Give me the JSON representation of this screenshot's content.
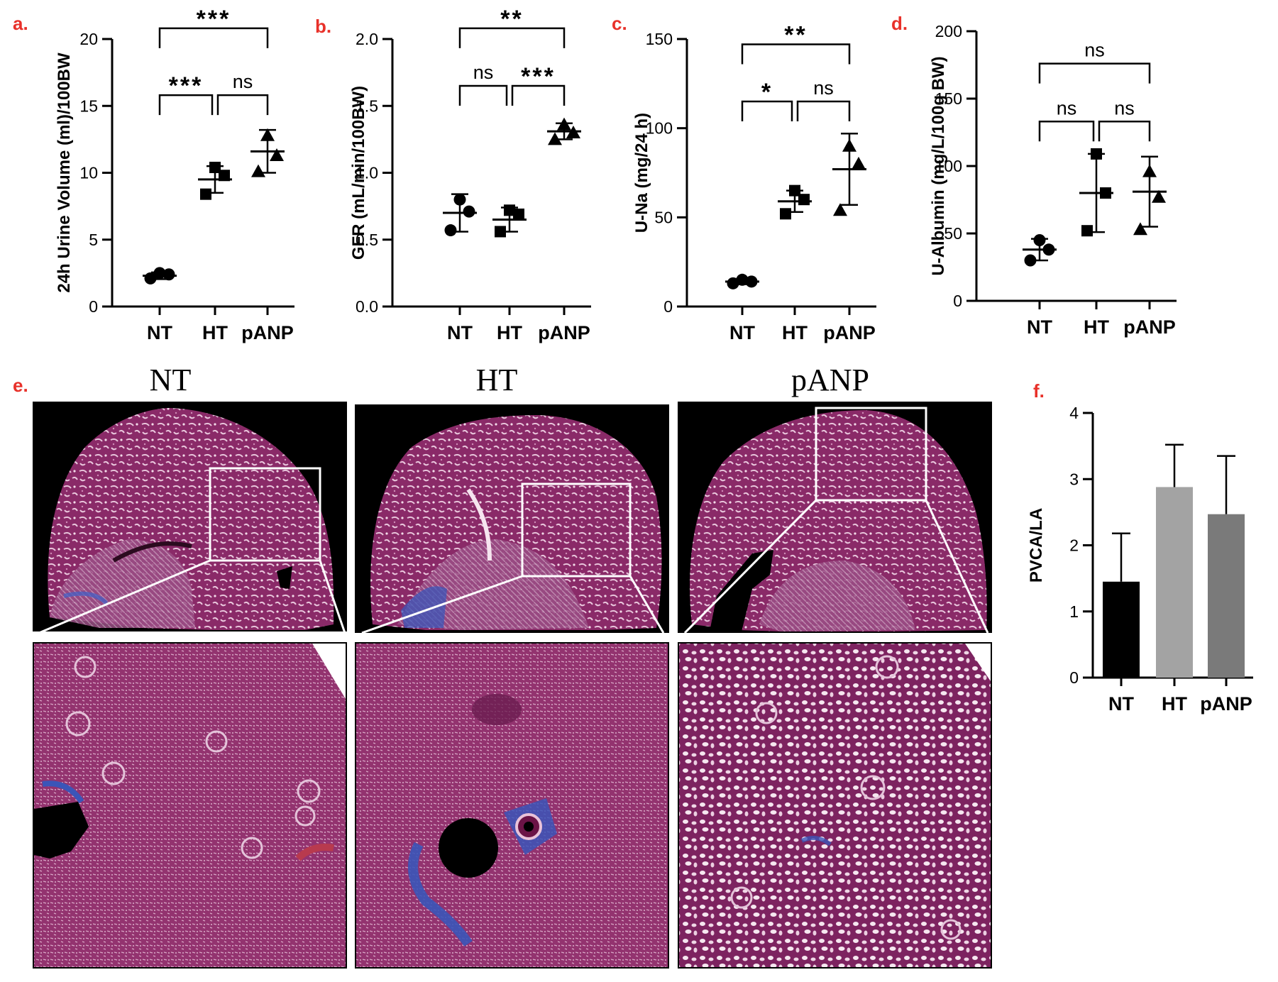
{
  "panel_labels": [
    "a.",
    "b.",
    "c.",
    "d.",
    "e.",
    "f."
  ],
  "colors": {
    "panel_label": "#e8312a",
    "bar_NT": "#000000",
    "bar_HT": "#a3a3a3",
    "bar_pANP": "#7a7a7a",
    "tissue": "#8a2a68",
    "tissue_light": "#c98ab0",
    "fibrosis": "#3b55b8"
  },
  "icons": {
    "NT": "circle-marker",
    "HT": "square-marker",
    "pANP": "triangle-marker"
  },
  "histology": {
    "titles": [
      "NT",
      "HT",
      "pANP"
    ]
  },
  "chart_data": [
    {
      "id": "a",
      "type": "scatter",
      "categories": [
        "NT",
        "HT",
        "pANP"
      ],
      "ylabel": "24h Urine Volume (ml)/100BW",
      "ylim": [
        0,
        20
      ],
      "yticks": [
        0,
        5,
        10,
        15,
        20
      ],
      "series": [
        {
          "category": "NT",
          "marker": "circle",
          "points": [
            2.1,
            2.4,
            2.5
          ],
          "mean": 2.3,
          "sd": 0.25
        },
        {
          "category": "HT",
          "marker": "square",
          "points": [
            8.4,
            9.8,
            10.4
          ],
          "mean": 9.5,
          "sd": 1.0
        },
        {
          "category": "pANP",
          "marker": "triangle",
          "points": [
            10.1,
            11.3,
            12.8
          ],
          "mean": 11.6,
          "sd": 1.6
        }
      ],
      "significance": [
        {
          "from": "NT",
          "to": "pANP",
          "label": "***",
          "y": 20.8
        },
        {
          "from": "NT",
          "to": "HT",
          "label": "***",
          "y": 15.8
        },
        {
          "from": "HT",
          "to": "pANP",
          "label": "ns",
          "y": 15.8
        }
      ]
    },
    {
      "id": "b",
      "type": "scatter",
      "categories": [
        "NT",
        "HT",
        "pANP"
      ],
      "ylabel": "GFR (mL/min/100BW)",
      "ylim": [
        0,
        2.0
      ],
      "yticks": [
        "0.0",
        "0.5",
        "1.0",
        "1.5",
        "2.0"
      ],
      "series": [
        {
          "category": "NT",
          "marker": "circle",
          "points": [
            0.57,
            0.71,
            0.8
          ],
          "mean": 0.7,
          "sd": 0.14
        },
        {
          "category": "HT",
          "marker": "square",
          "points": [
            0.56,
            0.69,
            0.72
          ],
          "mean": 0.65,
          "sd": 0.09
        },
        {
          "category": "pANP",
          "marker": "triangle",
          "points": [
            1.25,
            1.3,
            1.36
          ],
          "mean": 1.31,
          "sd": 0.06
        }
      ],
      "significance": [
        {
          "from": "NT",
          "to": "pANP",
          "label": "**",
          "y": 2.08
        },
        {
          "from": "NT",
          "to": "HT",
          "label": "ns",
          "y": 1.65
        },
        {
          "from": "HT",
          "to": "pANP",
          "label": "***",
          "y": 1.65
        }
      ]
    },
    {
      "id": "c",
      "type": "scatter",
      "categories": [
        "NT",
        "HT",
        "pANP"
      ],
      "ylabel": "U-Na (mg/24 h)",
      "ylim": [
        0,
        150
      ],
      "yticks": [
        0,
        50,
        100,
        150
      ],
      "series": [
        {
          "category": "NT",
          "marker": "circle",
          "points": [
            13,
            14,
            15
          ],
          "mean": 14,
          "sd": 1.5
        },
        {
          "category": "HT",
          "marker": "square",
          "points": [
            52,
            60,
            65
          ],
          "mean": 59,
          "sd": 6
        },
        {
          "category": "pANP",
          "marker": "triangle",
          "points": [
            54,
            80,
            90
          ],
          "mean": 77,
          "sd": 20
        }
      ],
      "significance": [
        {
          "from": "NT",
          "to": "pANP",
          "label": "**",
          "y": 147
        },
        {
          "from": "NT",
          "to": "HT",
          "label": "*",
          "y": 115
        },
        {
          "from": "HT",
          "to": "pANP",
          "label": "ns",
          "y": 115
        }
      ]
    },
    {
      "id": "d",
      "type": "scatter",
      "categories": [
        "NT",
        "HT",
        "pANP"
      ],
      "ylabel": "U-Albumin (mg/L/100g BW)",
      "ylim": [
        0,
        200
      ],
      "yticks": [
        0,
        50,
        100,
        150,
        200
      ],
      "series": [
        {
          "category": "NT",
          "marker": "circle",
          "points": [
            30,
            38,
            45
          ],
          "mean": 38,
          "sd": 8
        },
        {
          "category": "HT",
          "marker": "square",
          "points": [
            52,
            80,
            109
          ],
          "mean": 80,
          "sd": 29
        },
        {
          "category": "pANP",
          "marker": "triangle",
          "points": [
            53,
            77,
            96
          ],
          "mean": 81,
          "sd": 26
        }
      ],
      "significance": [
        {
          "from": "NT",
          "to": "pANP",
          "label": "ns",
          "y": 176
        },
        {
          "from": "NT",
          "to": "HT",
          "label": "ns",
          "y": 133
        },
        {
          "from": "HT",
          "to": "pANP",
          "label": "ns",
          "y": 133
        }
      ]
    },
    {
      "id": "f",
      "type": "bar",
      "categories": [
        "NT",
        "HT",
        "pANP"
      ],
      "ylabel": "PVCA/LA",
      "ylim": [
        0,
        4
      ],
      "yticks": [
        0,
        1,
        2,
        3,
        4
      ],
      "values": [
        1.45,
        2.88,
        2.47
      ],
      "errors": [
        0.73,
        0.64,
        0.88
      ]
    }
  ]
}
